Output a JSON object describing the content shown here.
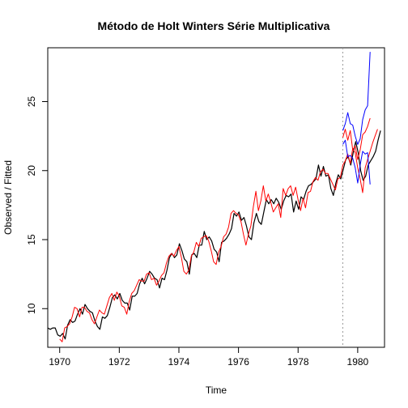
{
  "chart_data": {
    "type": "line",
    "title": "Método de Holt Winters Série Multiplicativa",
    "xlabel": "Time",
    "ylabel": "Observed / Fitted",
    "xlim": [
      1969.6,
      1980.9
    ],
    "ylim": [
      7.2,
      28.9
    ],
    "xticks": [
      1970,
      1972,
      1974,
      1976,
      1978,
      1980
    ],
    "yticks": [
      10,
      15,
      20,
      25
    ],
    "ytick_labels_rotated": true,
    "vline": 1979.5,
    "grid": false,
    "legend": "none",
    "colors": {
      "observed": "#000000",
      "fitted": "#ff0000",
      "bounds": "#0000ff",
      "vline": "#999999"
    },
    "series": [
      {
        "key": "observed",
        "x_start": 1969.6,
        "x_step": 0.0833333,
        "values": [
          8.6,
          8.5,
          8.6,
          8.6,
          8.1,
          8.0,
          8.2,
          7.8,
          8.8,
          9.2,
          9.0,
          9.1,
          9.6,
          10.0,
          9.6,
          10.3,
          10.0,
          9.8,
          9.7,
          9.1,
          8.7,
          8.5,
          9.4,
          9.3,
          9.5,
          10.1,
          10.8,
          11.0,
          10.7,
          11.1,
          10.6,
          10.4,
          10.4,
          9.9,
          10.9,
          10.9,
          11.1,
          11.8,
          12.2,
          11.8,
          12.2,
          12.7,
          12.5,
          12.2,
          12.1,
          11.5,
          12.2,
          12.1,
          12.8,
          13.7,
          14.0,
          13.7,
          13.9,
          14.7,
          14.2,
          13.6,
          13.4,
          12.5,
          13.9,
          14.0,
          13.7,
          14.6,
          14.6,
          15.6,
          15.0,
          15.2,
          14.9,
          14.3,
          14.1,
          13.4,
          14.8,
          14.9,
          15.1,
          15.4,
          15.8,
          16.9,
          16.7,
          17.0,
          16.4,
          16.6,
          16.0,
          15.2,
          15.0,
          16.2,
          16.9,
          16.3,
          16.1,
          17.0,
          17.9,
          17.6,
          17.9,
          17.6,
          18.0,
          17.7,
          17.2,
          17.8,
          18.2,
          18.1,
          18.3,
          17.0,
          17.8,
          17.2,
          18.1,
          17.9,
          18.5,
          18.9,
          19.0,
          19.2,
          19.4,
          20.4,
          19.6,
          20.3,
          19.6,
          19.7,
          18.7,
          18.2,
          19.1,
          19.7,
          19.4,
          20.1,
          20.8,
          21.0,
          20.4,
          21.3,
          22.1,
          21.3,
          20.0,
          19.3,
          19.6,
          20.4,
          20.7,
          21.0,
          21.4,
          22.2,
          22.9
        ]
      },
      {
        "key": "fitted",
        "x_start": 1970.0,
        "x_step": 0.0833333,
        "values": [
          7.8,
          7.6,
          8.6,
          8.7,
          8.9,
          9.4,
          10.1,
          10.0,
          9.4,
          10.1,
          10.1,
          9.8,
          9.7,
          9.2,
          8.9,
          9.4,
          9.9,
          9.7,
          9.6,
          10.2,
          10.8,
          11.1,
          10.6,
          11.2,
          10.9,
          10.2,
          10.1,
          9.6,
          10.5,
          11.1,
          11.3,
          11.7,
          12.1,
          12.0,
          12.0,
          12.5,
          12.6,
          12.1,
          12.2,
          11.7,
          12.0,
          12.4,
          12.6,
          13.3,
          13.8,
          14.0,
          13.8,
          14.2,
          14.5,
          13.7,
          12.7,
          12.5,
          12.8,
          13.8,
          14.1,
          14.8,
          14.5,
          15.1,
          15.2,
          15.3,
          14.9,
          14.2,
          13.4,
          13.2,
          14.1,
          14.5,
          15.2,
          15.4,
          15.9,
          16.9,
          17.1,
          16.9,
          16.8,
          16.3,
          15.4,
          14.6,
          15.4,
          16.0,
          17.4,
          18.5,
          17.1,
          17.8,
          18.9,
          17.8,
          18.3,
          17.7,
          17.0,
          17.3,
          17.6,
          16.6,
          18.7,
          18.2,
          18.7,
          18.9,
          18.2,
          18.8,
          17.9,
          17.1,
          18.0,
          17.3,
          18.4,
          18.5,
          19.2,
          19.5,
          19.3,
          19.9,
          20.1,
          19.8,
          19.8,
          19.4,
          19.0,
          18.6,
          19.4,
          19.5,
          20.4,
          20.7,
          21.2,
          20.5,
          21.6,
          21.3,
          20.2,
          19.4,
          18.4,
          20.2,
          20.8,
          21.4,
          22.0,
          22.5,
          23.0
        ]
      },
      {
        "key": "forecast",
        "x_start": 1979.5,
        "x_step": 0.0833333,
        "values": [
          22.4,
          23.0,
          22.2,
          22.9,
          21.5,
          21.8,
          20.8,
          21.5,
          22.6,
          22.8,
          23.2,
          23.8
        ]
      },
      {
        "key": "upper",
        "x_start": 1979.5,
        "x_step": 0.0833333,
        "values": [
          22.9,
          23.4,
          24.2,
          23.4,
          23.3,
          22.5,
          21.9,
          22.3,
          23.7,
          24.4,
          24.7,
          28.6
        ]
      },
      {
        "key": "lower",
        "x_start": 1979.5,
        "x_step": 0.0833333,
        "values": [
          21.9,
          22.2,
          21.0,
          21.1,
          20.9,
          20.2,
          19.1,
          20.4,
          21.4,
          21.2,
          21.3,
          19.0
        ]
      }
    ]
  }
}
